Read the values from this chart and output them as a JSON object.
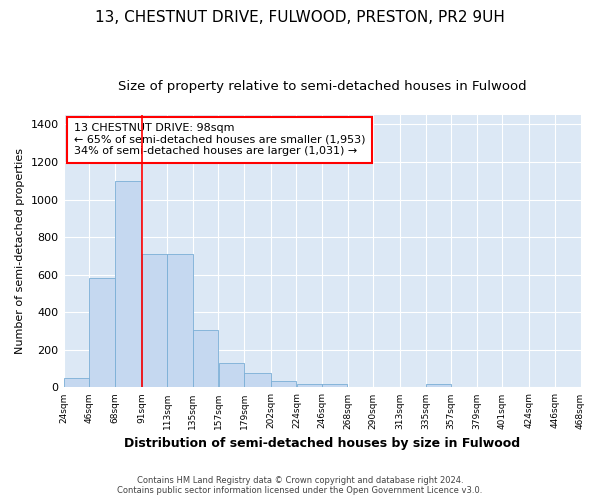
{
  "title": "13, CHESTNUT DRIVE, FULWOOD, PRESTON, PR2 9UH",
  "subtitle": "Size of property relative to semi-detached houses in Fulwood",
  "xlabel": "Distribution of semi-detached houses by size in Fulwood",
  "ylabel": "Number of semi-detached properties",
  "footer_line1": "Contains HM Land Registry data © Crown copyright and database right 2024.",
  "footer_line2": "Contains public sector information licensed under the Open Government Licence v3.0.",
  "annotation_line1": "13 CHESTNUT DRIVE: 98sqm",
  "annotation_line2": "← 65% of semi-detached houses are smaller (1,953)",
  "annotation_line3": "34% of semi-detached houses are larger (1,031) →",
  "bar_left_edges": [
    24,
    46,
    68,
    91,
    113,
    135,
    157,
    179,
    202,
    224,
    246,
    268,
    290,
    313,
    335,
    357,
    379,
    401,
    424,
    446
  ],
  "bar_widths": [
    22,
    22,
    23,
    22,
    22,
    22,
    22,
    23,
    22,
    22,
    22,
    22,
    23,
    22,
    22,
    22,
    22,
    23,
    22,
    22
  ],
  "bar_heights": [
    50,
    580,
    1100,
    710,
    710,
    305,
    130,
    75,
    35,
    20,
    20,
    0,
    0,
    0,
    20,
    0,
    0,
    0,
    0,
    0
  ],
  "bar_color": "#c5d8f0",
  "bar_edge_color": "#7aaed6",
  "vline_x": 91,
  "vline_color": "red",
  "ylim": [
    0,
    1450
  ],
  "yticks": [
    0,
    200,
    400,
    600,
    800,
    1000,
    1200,
    1400
  ],
  "tick_labels": [
    "24sqm",
    "46sqm",
    "68sqm",
    "91sqm",
    "113sqm",
    "135sqm",
    "157sqm",
    "179sqm",
    "202sqm",
    "224sqm",
    "246sqm",
    "268sqm",
    "290sqm",
    "313sqm",
    "335sqm",
    "357sqm",
    "379sqm",
    "401sqm",
    "424sqm",
    "446sqm",
    "468sqm"
  ],
  "bg_color": "#ffffff",
  "plot_bg_color": "#dce8f5",
  "grid_color": "#ffffff",
  "title_fontsize": 11,
  "subtitle_fontsize": 9.5,
  "xlabel_fontsize": 9,
  "ylabel_fontsize": 8
}
